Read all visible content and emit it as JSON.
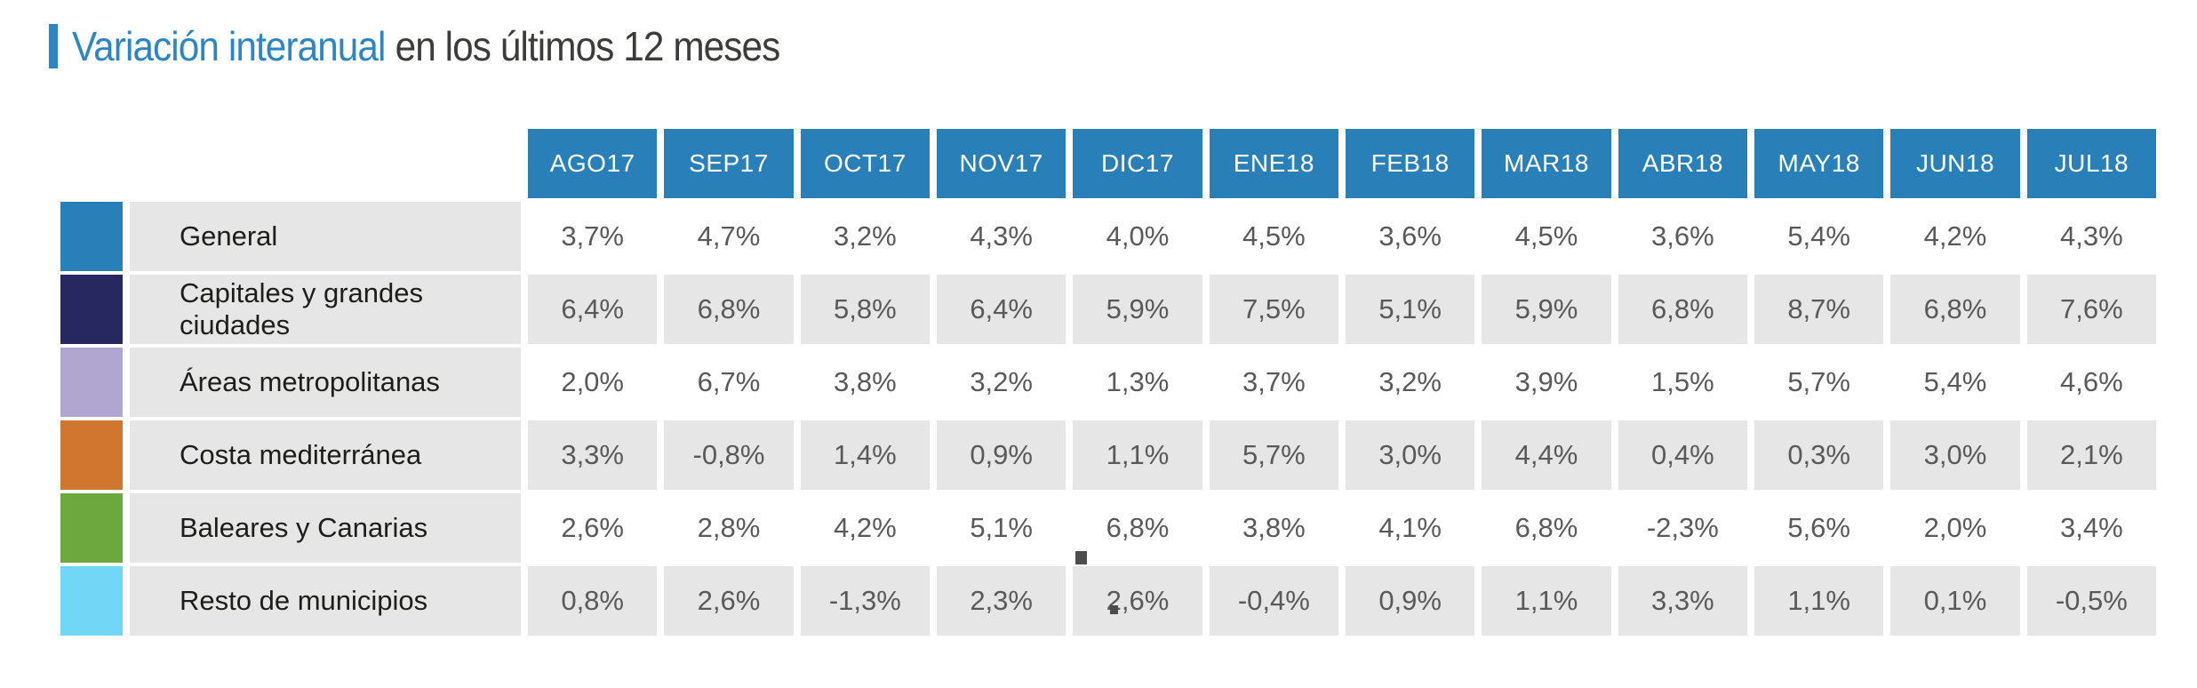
{
  "title": {
    "highlight": "Variación interanual",
    "rest": "en los últimos 12 meses"
  },
  "colors": {
    "accent_blue": "#2c86c3",
    "header_blue": "#2980b9",
    "cell_gray": "#e6e6e6",
    "value_text": "#595959",
    "label_text": "#1d1d1b"
  },
  "table": {
    "columns": [
      "AGO17",
      "SEP17",
      "OCT17",
      "NOV17",
      "DIC17",
      "ENE18",
      "FEB18",
      "MAR18",
      "ABR18",
      "MAY18",
      "JUN18",
      "JUL18"
    ],
    "rows": [
      {
        "label": "General",
        "color": "#2980b9",
        "cells": [
          "3,7%",
          "4,7%",
          "3,2%",
          "4,3%",
          "4,0%",
          "4,5%",
          "3,6%",
          "4,5%",
          "3,6%",
          "5,4%",
          "4,2%",
          "4,3%"
        ]
      },
      {
        "label": "Capitales y grandes ciudades",
        "color": "#282860",
        "cells": [
          "6,4%",
          "6,8%",
          "5,8%",
          "6,4%",
          "5,9%",
          "7,5%",
          "5,1%",
          "5,9%",
          "6,8%",
          "8,7%",
          "6,8%",
          "7,6%"
        ]
      },
      {
        "label": "Áreas metropolitanas",
        "color": "#b0a6cf",
        "cells": [
          "2,0%",
          "6,7%",
          "3,8%",
          "3,2%",
          "1,3%",
          "3,7%",
          "3,2%",
          "3,9%",
          "1,5%",
          "5,7%",
          "5,4%",
          "4,6%"
        ]
      },
      {
        "label": "Costa mediterránea",
        "color": "#d1762f",
        "cells": [
          "3,3%",
          "-0,8%",
          "1,4%",
          "0,9%",
          "1,1%",
          "5,7%",
          "3,0%",
          "4,4%",
          "0,4%",
          "0,3%",
          "3,0%",
          "2,1%"
        ]
      },
      {
        "label": "Baleares y Canarias",
        "color": "#6ca83e",
        "cells": [
          "2,6%",
          "2,8%",
          "4,2%",
          "5,1%",
          "6,8%",
          "3,8%",
          "4,1%",
          "6,8%",
          "-2,3%",
          "5,6%",
          "2,0%",
          "3,4%"
        ]
      },
      {
        "label": "Resto de municipios",
        "color": "#72d7f7",
        "cells": [
          "0,8%",
          "2,6%",
          "-1,3%",
          "2,3%",
          "2,6%",
          "-0,4%",
          "0,9%",
          "1,1%",
          "3,3%",
          "1,1%",
          "0,1%",
          "-0,5%"
        ]
      }
    ]
  },
  "chart_data": {
    "type": "table",
    "title": "Variación interanual en los últimos 12 meses",
    "categories": [
      "AGO17",
      "SEP17",
      "OCT17",
      "NOV17",
      "DIC17",
      "ENE18",
      "FEB18",
      "MAR18",
      "ABR18",
      "MAY18",
      "JUN18",
      "JUL18"
    ],
    "unit": "%",
    "series": [
      {
        "name": "General",
        "color": "#2980b9",
        "values": [
          3.7,
          4.7,
          3.2,
          4.3,
          4.0,
          4.5,
          3.6,
          4.5,
          3.6,
          5.4,
          4.2,
          4.3
        ]
      },
      {
        "name": "Capitales y grandes ciudades",
        "color": "#282860",
        "values": [
          6.4,
          6.8,
          5.8,
          6.4,
          5.9,
          7.5,
          5.1,
          5.9,
          6.8,
          8.7,
          6.8,
          7.6
        ]
      },
      {
        "name": "Áreas metropolitanas",
        "color": "#b0a6cf",
        "values": [
          2.0,
          6.7,
          3.8,
          3.2,
          1.3,
          3.7,
          3.2,
          3.9,
          1.5,
          5.7,
          5.4,
          4.6
        ]
      },
      {
        "name": "Costa mediterránea",
        "color": "#d1762f",
        "values": [
          3.3,
          -0.8,
          1.4,
          0.9,
          1.1,
          5.7,
          3.0,
          4.4,
          0.4,
          0.3,
          3.0,
          2.1
        ]
      },
      {
        "name": "Baleares y Canarias",
        "color": "#6ca83e",
        "values": [
          2.6,
          2.8,
          4.2,
          5.1,
          6.8,
          3.8,
          4.1,
          6.8,
          -2.3,
          5.6,
          2.0,
          3.4
        ]
      },
      {
        "name": "Resto de municipios",
        "color": "#72d7f7",
        "values": [
          0.8,
          2.6,
          -1.3,
          2.3,
          2.6,
          -0.4,
          0.9,
          1.1,
          3.3,
          1.1,
          0.1,
          -0.5
        ]
      }
    ]
  }
}
